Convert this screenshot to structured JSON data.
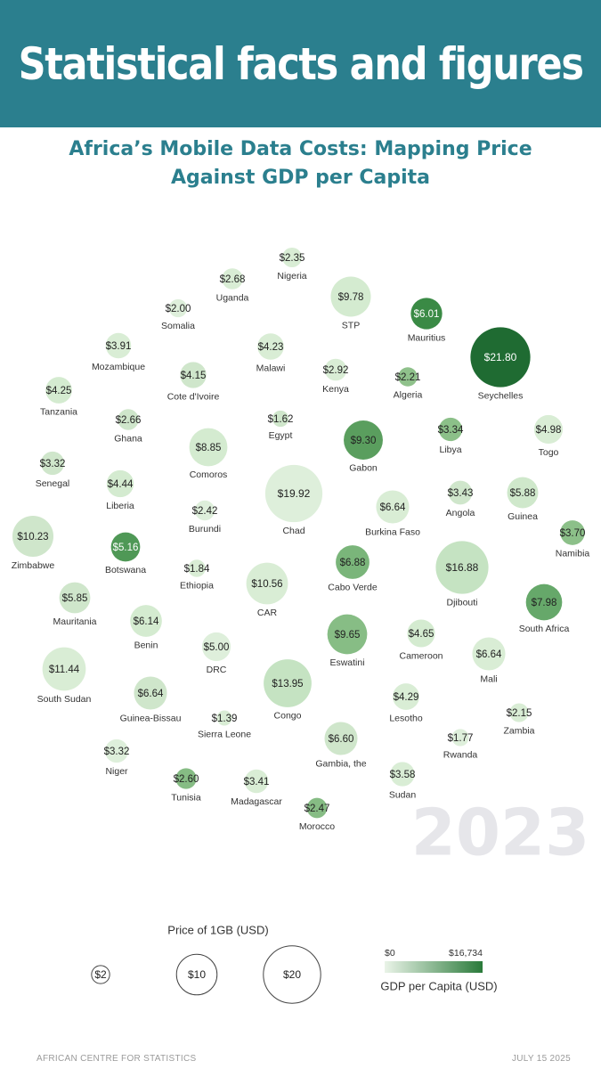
{
  "header": {
    "title": "Statistical facts and figures"
  },
  "chart_data": {
    "type": "bubble",
    "title": "Africa’s Mobile Data Costs: Mapping Price Against GDP per Capita",
    "categories": [
      "Nigeria",
      "Uganda",
      "STP",
      "Mauritius",
      "Somalia",
      "Mozambique",
      "Malawi",
      "Seychelles",
      "Kenya",
      "Cote d'Ivoire",
      "Algeria",
      "Tanzania",
      "Ghana",
      "Egypt",
      "Gabon",
      "Libya",
      "Togo",
      "Senegal",
      "Comoros",
      "Liberia",
      "Burundi",
      "Chad",
      "Burkina Faso",
      "Angola",
      "Guinea",
      "Namibia",
      "Zimbabwe",
      "Botswana",
      "Ethiopia",
      "Cabo Verde",
      "Djibouti",
      "CAR",
      "South Africa",
      "Mauritania",
      "Benin",
      "Eswatini",
      "DRC",
      "Cameroon",
      "Mali",
      "South Sudan",
      "Congo",
      "Guinea-Bissau",
      "Lesotho",
      "Zambia",
      "Sierra Leone",
      "Rwanda",
      "Gambia, the",
      "Niger",
      "Tunisia",
      "Madagascar",
      "Sudan",
      "Morocco"
    ],
    "values": [
      2.35,
      2.68,
      9.78,
      6.01,
      2.0,
      3.91,
      4.23,
      21.8,
      2.92,
      4.15,
      2.21,
      4.25,
      2.66,
      1.62,
      9.3,
      3.34,
      4.98,
      3.32,
      8.85,
      4.44,
      2.42,
      19.92,
      6.64,
      3.43,
      5.88,
      3.7,
      10.23,
      5.16,
      1.84,
      6.88,
      16.88,
      10.56,
      7.98,
      5.85,
      6.14,
      9.65,
      5.0,
      4.65,
      6.64,
      11.44,
      13.95,
      6.64,
      4.29,
      2.15,
      1.39,
      1.77,
      6.6,
      3.32,
      2.6,
      3.41,
      3.58,
      2.47
    ],
    "value_labels": [
      "$2.35",
      "$2.68",
      "$9.78",
      "$6.01",
      "$2.00",
      "$3.91",
      "$4.23",
      "$21.80",
      "$2.92",
      "$4.15",
      "$2.21",
      "$4.25",
      "$2.66",
      "$1.62",
      "$9.30",
      "$3.34",
      "$4.98",
      "$3.32",
      "$8.85",
      "$4.44",
      "$2.42",
      "$19.92",
      "$6.64",
      "$3.43",
      "$5.88",
      "$3.70",
      "$10.23",
      "$5.16",
      "$1.84",
      "$6.88",
      "$16.88",
      "$10.56",
      "$7.98",
      "$5.85",
      "$6.14",
      "$9.65",
      "$5.00",
      "$4.65",
      "$6.64",
      "$11.44",
      "$13.95",
      "$6.64",
      "$4.29",
      "$2.15",
      "$1.39",
      "$1.77",
      "$6.60",
      "$3.32",
      "$2.60",
      "$3.41",
      "$3.58",
      "$2.47"
    ],
    "colors": [
      "#d9edd5",
      "#d9edd5",
      "#d4ebd0",
      "#3a8a45",
      "#deefdb",
      "#d9edd5",
      "#d9edd5",
      "#1f6b32",
      "#d9edd5",
      "#cfe6cb",
      "#8fc18b",
      "#d4ebd0",
      "#cfe6cb",
      "#cfe6cb",
      "#5a9e5e",
      "#8cc089",
      "#d9edd5",
      "#cfe6cb",
      "#d4ebd0",
      "#d4ebd0",
      "#deefdb",
      "#deefdb",
      "#d9edd5",
      "#cfe6cb",
      "#cfe8cb",
      "#8cc089",
      "#cfe6cb",
      "#4f9856",
      "#d9edd5",
      "#7ab57a",
      "#c5e3c2",
      "#d9edd5",
      "#66a86a",
      "#cfe6cb",
      "#d4ebd0",
      "#87bd85",
      "#deefdb",
      "#d4ebd0",
      "#d9edd5",
      "#d9edd5",
      "#c5e3c2",
      "#cfe6cb",
      "#d9edd5",
      "#d9edd5",
      "#d9edd5",
      "#deefdb",
      "#cfe6cb",
      "#deefdb",
      "#86bc84",
      "#d9edd5",
      "#d9edd5",
      "#86bc84"
    ],
    "annotation": "2023",
    "size_legend": {
      "title": "Price of 1GB (USD)",
      "values": [
        2,
        10,
        20
      ],
      "value_labels": [
        "$2",
        "$10",
        "$20"
      ]
    },
    "color_legend": {
      "title": "GDP per Capita (USD)",
      "range": [
        0,
        16734
      ],
      "ticks": [
        {
          "value": 0,
          "label": "$0"
        },
        {
          "value": 16734,
          "label": "$16,734"
        }
      ],
      "colors": [
        "#eaf4e8",
        "#2a7a3a"
      ]
    }
  },
  "footer": {
    "source": "AFRICAN CENTRE FOR STATISTICS",
    "date": "JULY 15 2025"
  }
}
